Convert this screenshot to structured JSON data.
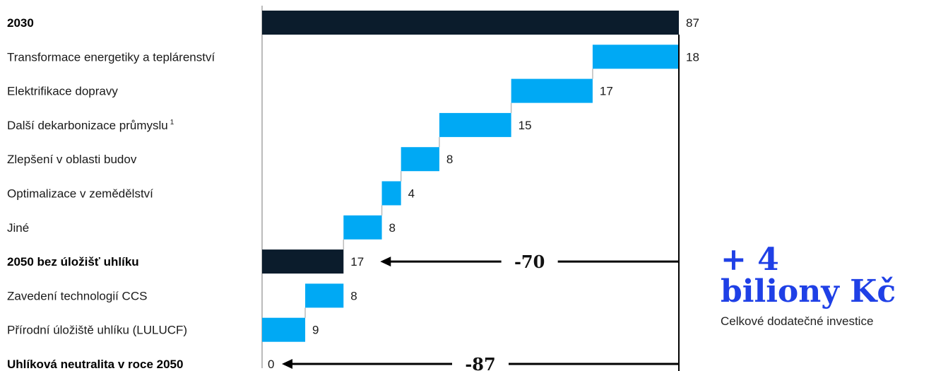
{
  "chart_data": {
    "type": "bar",
    "subtype": "waterfall",
    "categories": [
      "2030",
      "Transformace energetiky a teplárenství",
      "Elektrifikace dopravy",
      "Další dekarbonizace průmyslu",
      "Zlepšení v oblasti budov",
      "Optimalizace v zemědělství",
      "Jiné",
      "2050 bez úložišť uhlíku",
      "Zavedení technologií CCS",
      "Přírodní úložiště uhlíku (LULUCF)",
      "Uhlíková neutralita v roce 2050"
    ],
    "footnotes": [
      "",
      "",
      "",
      "1",
      "",
      "",
      "",
      "",
      "",
      "",
      ""
    ],
    "values": [
      87,
      18,
      17,
      15,
      8,
      4,
      8,
      17,
      8,
      9,
      0
    ],
    "kinds": [
      "total",
      "step",
      "step",
      "step",
      "step",
      "step",
      "step",
      "total",
      "step",
      "step",
      "total"
    ],
    "bold": [
      true,
      false,
      false,
      false,
      false,
      false,
      false,
      true,
      false,
      false,
      true
    ],
    "xlim": [
      0,
      87
    ],
    "grid": false,
    "colors": {
      "total": "#0b1c2c",
      "step": "#00a9f4",
      "connector": "#bbbbbb",
      "axis": "#bbbbbb",
      "arrow": "#000000"
    },
    "annotations": [
      {
        "label": "-70",
        "from_value": 87,
        "to_value": 17,
        "row": 7
      },
      {
        "label": "-87",
        "from_value": 87,
        "to_value": 0,
        "row": 10
      }
    ]
  },
  "summary": {
    "line1": "+ 4",
    "line2": "biliony Kč",
    "caption": "Celkové dodatečné investice"
  }
}
